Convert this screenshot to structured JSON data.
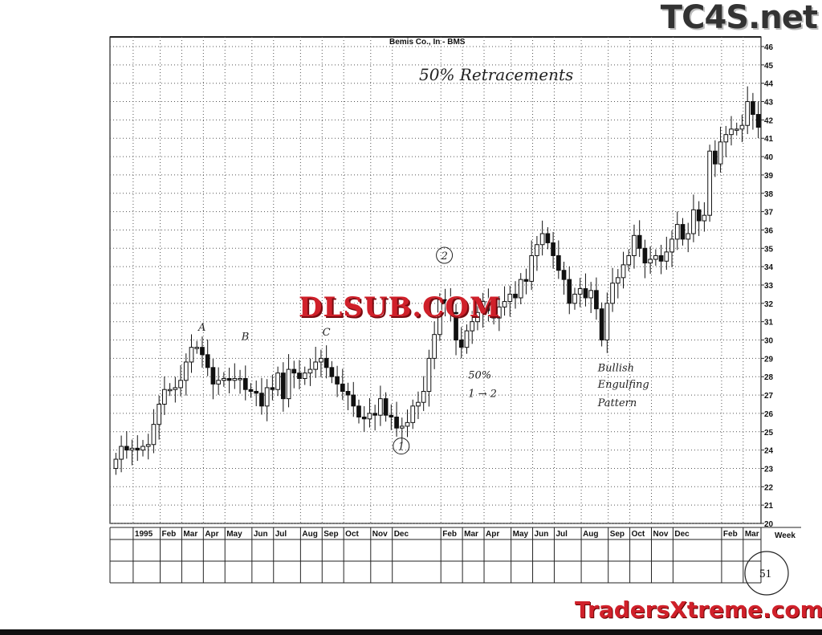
{
  "chart_data": {
    "type": "candlestick",
    "title": "Bemis Co., In  - BMS",
    "annotation_title": "50% Retracements",
    "interval": "weekly",
    "ylim": [
      20,
      46
    ],
    "yticks": [
      20,
      21,
      22,
      23,
      24,
      25,
      26,
      27,
      28,
      29,
      30,
      31,
      32,
      33,
      34,
      35,
      36,
      37,
      38,
      39,
      40,
      41,
      42,
      43,
      44,
      45,
      46
    ],
    "y_axis_side": "right",
    "grid": true,
    "first_open": 23.0,
    "close": [
      23.5,
      24.2,
      24.0,
      24.1,
      24.0,
      24.2,
      24.3,
      25.4,
      26.5,
      27.3,
      27.3,
      27.4,
      27.8,
      28.8,
      29.6,
      29.6,
      29.2,
      28.5,
      27.6,
      27.8,
      27.9,
      27.8,
      27.9,
      27.9,
      27.3,
      27.2,
      27.1,
      26.4,
      27.4,
      27.3,
      28.2,
      26.8,
      28.4,
      28.2,
      27.9,
      28.2,
      28.4,
      28.8,
      29.0,
      28.5,
      28.0,
      27.6,
      27.2,
      27.0,
      26.4,
      25.8,
      25.7,
      26.0,
      25.9,
      26.8,
      25.9,
      25.8,
      25.2,
      25.3,
      25.5,
      26.4,
      26.6,
      27.2,
      29.0,
      30.3,
      32.2,
      32.0,
      31.5,
      30.0,
      29.6,
      30.5,
      31.0,
      31.5,
      32.1,
      31.6,
      31.2,
      31.8,
      32.1,
      32.5,
      32.3,
      33.3,
      33.2,
      34.6,
      35.2,
      35.8,
      35.3,
      34.6,
      33.8,
      33.3,
      32.0,
      32.5,
      32.8,
      32.3,
      32.7,
      31.7,
      30.0,
      32.0,
      33.1,
      33.4,
      34.1,
      34.6,
      35.7,
      35.0,
      34.2,
      34.4,
      34.6,
      34.3,
      34.8,
      35.5,
      36.3,
      35.5,
      35.8,
      37.1,
      36.5,
      36.8,
      40.3,
      39.6,
      40.8,
      41.2,
      41.5,
      41.5,
      41.7,
      43.0,
      42.3,
      41.6
    ],
    "xticks": [
      {
        "label": "1995",
        "week": 4
      },
      {
        "label": "Feb",
        "week": 9
      },
      {
        "label": "Mar",
        "week": 13
      },
      {
        "label": "Apr",
        "week": 17
      },
      {
        "label": "May",
        "week": 21
      },
      {
        "label": "Jun",
        "week": 26
      },
      {
        "label": "Jul",
        "week": 30
      },
      {
        "label": "Aug",
        "week": 35
      },
      {
        "label": "Sep",
        "week": 39
      },
      {
        "label": "Oct",
        "week": 43
      },
      {
        "label": "Nov",
        "week": 48
      },
      {
        "label": "Dec",
        "week": 52
      },
      {
        "label": "Feb",
        "week": 61
      },
      {
        "label": "Mar",
        "week": 65
      },
      {
        "label": "Apr",
        "week": 69
      },
      {
        "label": "May",
        "week": 74
      },
      {
        "label": "Jun",
        "week": 78
      },
      {
        "label": "Jul",
        "week": 82
      },
      {
        "label": "Aug",
        "week": 87
      },
      {
        "label": "Sep",
        "week": 92
      },
      {
        "label": "Oct",
        "week": 96
      },
      {
        "label": "Nov",
        "week": 100
      },
      {
        "label": "Dec",
        "week": 104
      },
      {
        "label": "Feb",
        "week": 113
      },
      {
        "label": "Mar",
        "week": 117
      }
    ],
    "xaxis_unit_label": "Week",
    "annotations": [
      {
        "text": "A",
        "week": 16,
        "price": 30.5
      },
      {
        "text": "B",
        "week": 24,
        "price": 30.0
      },
      {
        "text": "C",
        "week": 39,
        "price": 30.5
      },
      {
        "text": "1",
        "week": 53,
        "price": 24.0
      },
      {
        "text": "2",
        "week": 61,
        "price": 34.4
      },
      {
        "text": "50%",
        "week": 66,
        "price": 27.9
      },
      {
        "text": "1 → 2",
        "week": 66,
        "price": 26.9
      },
      {
        "text": "Bullish",
        "week": 90,
        "price": 28.3
      },
      {
        "text": "Engulfing",
        "week": 90,
        "price": 27.4
      },
      {
        "text": "Pattern",
        "week": 90,
        "price": 26.4
      }
    ]
  },
  "page_number": "51",
  "watermarks": {
    "top_right": "TC4S.net",
    "center": "DLSUB.COM",
    "bottom_right": "TradersXtreme.com"
  }
}
